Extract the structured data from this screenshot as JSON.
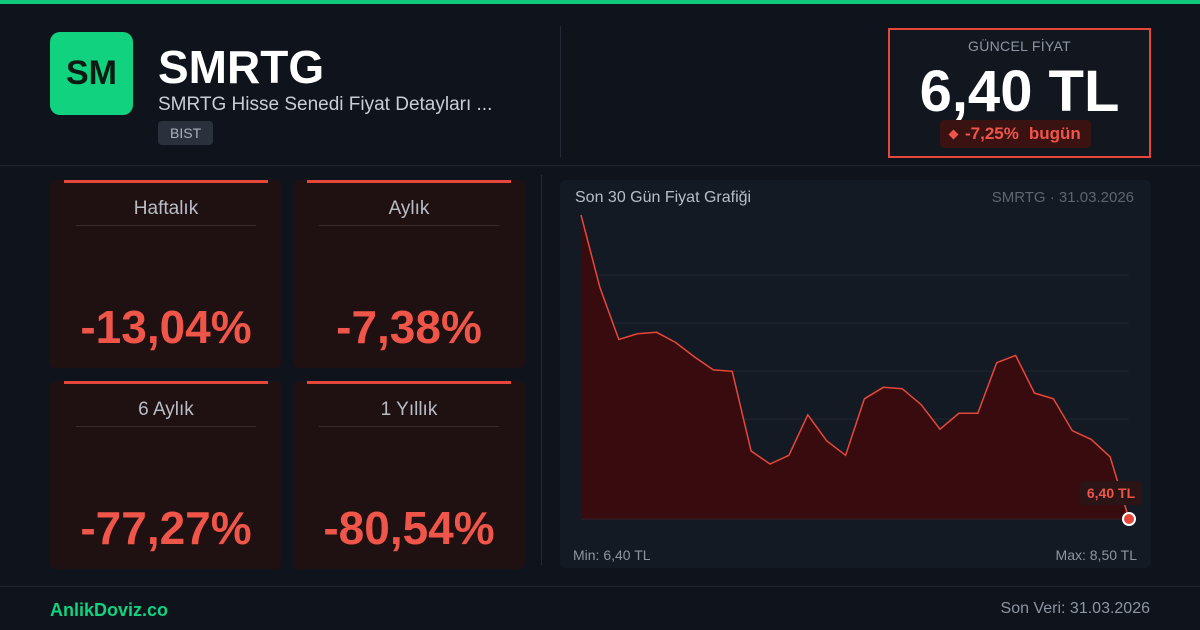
{
  "header": {
    "logo_text": "SM",
    "ticker": "SMRTG",
    "subtitle": "SMRTG Hisse Senedi Fiyat Detayları ...",
    "exchange": "BIST"
  },
  "price_box": {
    "label": "GÜNCEL FİYAT",
    "value": "6,40 TL",
    "change": "-7,25%",
    "change_suffix": "bugün"
  },
  "cards": [
    {
      "title": "Haftalık",
      "value": "-13,04%"
    },
    {
      "title": "Aylık",
      "value": "-7,38%"
    },
    {
      "title": "6 Aylık",
      "value": "-77,27%"
    },
    {
      "title": "1 Yıllık",
      "value": "-80,54%"
    }
  ],
  "chart_data": {
    "type": "area",
    "title": "Son 30 Gün Fiyat Grafiği",
    "meta": "SMRTG · 31.03.2026",
    "min_label": "Min: 6,40 TL",
    "max_label": "Max: 8,50 TL",
    "last_label": "6,40 TL",
    "ylim": [
      6.4,
      8.5
    ],
    "series": [
      {
        "values": [
          8.5,
          8.0,
          7.64,
          7.68,
          7.69,
          7.62,
          7.52,
          7.43,
          7.42,
          6.87,
          6.78,
          6.84,
          7.12,
          6.94,
          6.84,
          7.23,
          7.31,
          7.3,
          7.19,
          7.02,
          7.13,
          7.13,
          7.48,
          7.53,
          7.27,
          7.23,
          7.01,
          6.95,
          6.83,
          6.4
        ]
      }
    ],
    "colors": {
      "line": "#e5483a",
      "fill": "#3a0c0e",
      "marker": "#e5483a"
    },
    "grid": true
  },
  "footer": {
    "brand": "AnlikDoviz.co",
    "last_data": "Son Veri: 31.03.2026"
  }
}
